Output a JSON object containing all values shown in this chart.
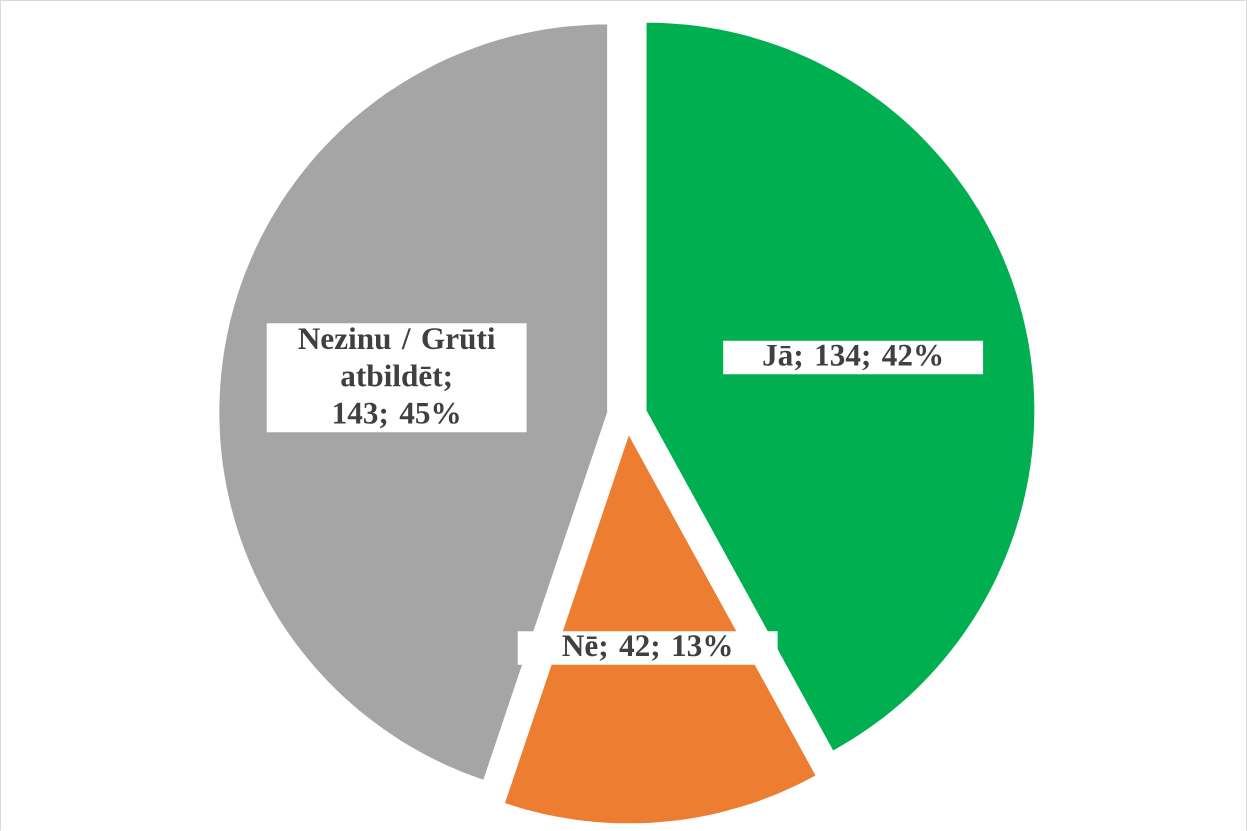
{
  "chart_data": {
    "type": "pie",
    "categories": [
      "Jā",
      "Nē",
      "Nezinu / Grūti atbildēt"
    ],
    "values": [
      134,
      42,
      143
    ],
    "value_labels": [
      "; 134; 42%",
      "; 42; 13%",
      "; 143; 45%"
    ],
    "colors": [
      "#00b050",
      "#ed7d31",
      "#a5a5a5"
    ]
  }
}
